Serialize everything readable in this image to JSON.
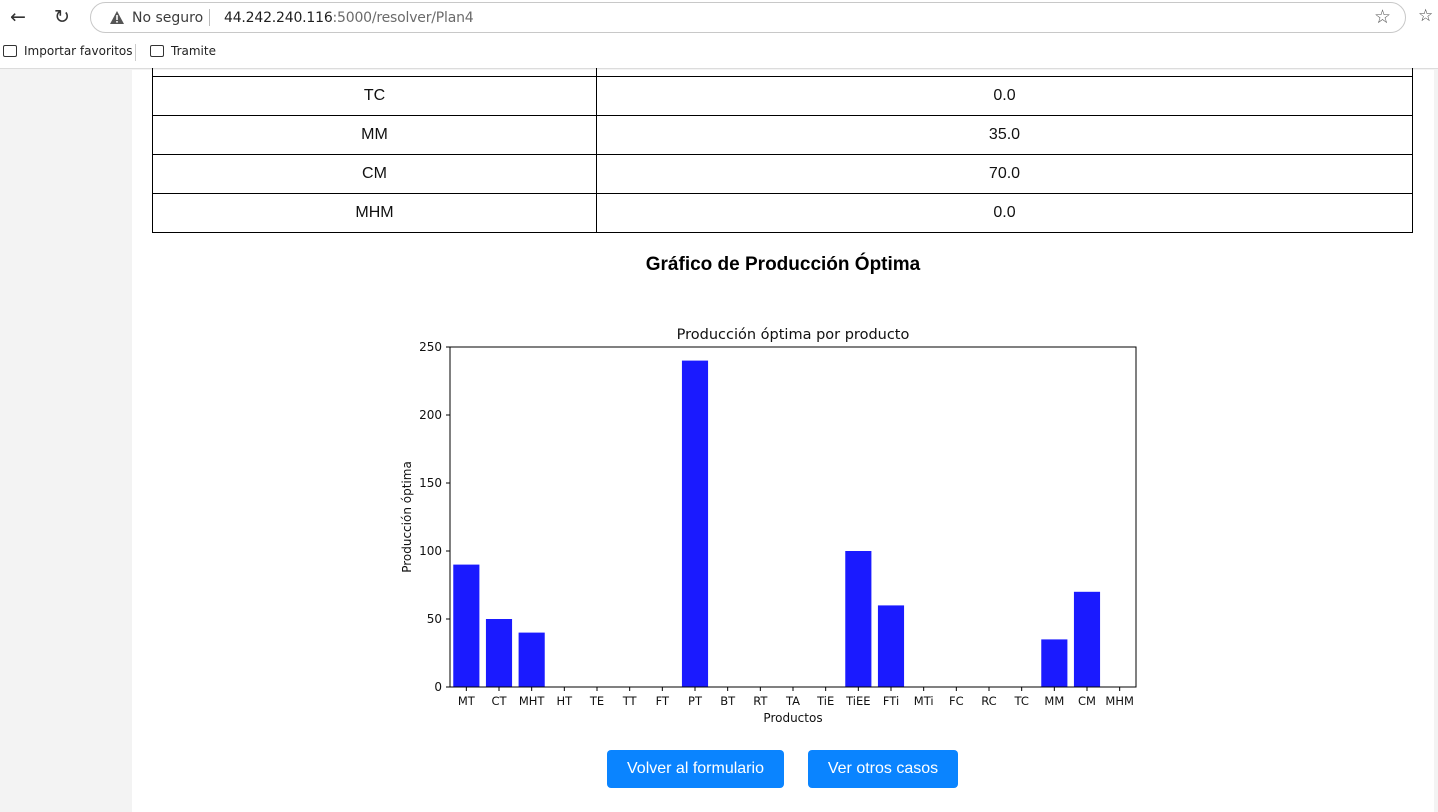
{
  "browser": {
    "security_label": "No seguro",
    "url_host": "44.242.240.116",
    "url_path": ":5000/resolver/Plan4",
    "bookmarks": [
      "Importar favoritos",
      "Tramite"
    ]
  },
  "table": {
    "rows": [
      {
        "product": "TC",
        "value": "0.0"
      },
      {
        "product": "MM",
        "value": "35.0"
      },
      {
        "product": "CM",
        "value": "70.0"
      },
      {
        "product": "MHM",
        "value": "0.0"
      }
    ]
  },
  "section_title": "Gráfico de Producción Óptima",
  "chart_data": {
    "type": "bar",
    "title": "Producción óptima por producto",
    "xlabel": "Productos",
    "ylabel": "Producción óptima",
    "ylim": [
      0,
      250
    ],
    "yticks": [
      0,
      50,
      100,
      150,
      200,
      250
    ],
    "categories": [
      "MT",
      "CT",
      "MHT",
      "HT",
      "TE",
      "TT",
      "FT",
      "PT",
      "BT",
      "RT",
      "TA",
      "TiE",
      "TiEE",
      "FTi",
      "MTi",
      "FC",
      "RC",
      "TC",
      "MM",
      "CM",
      "MHM"
    ],
    "values": [
      90,
      50,
      40,
      0,
      0,
      0,
      0,
      240,
      0,
      0,
      0,
      0,
      100,
      60,
      0,
      0,
      0,
      0,
      35,
      70,
      0
    ],
    "bar_color": "#1a1aff",
    "grid": false,
    "legend": false
  },
  "buttons": {
    "back_to_form": "Volver al formulario",
    "other_cases": "Ver otros casos"
  },
  "colors": {
    "button": "#0a84ff"
  }
}
